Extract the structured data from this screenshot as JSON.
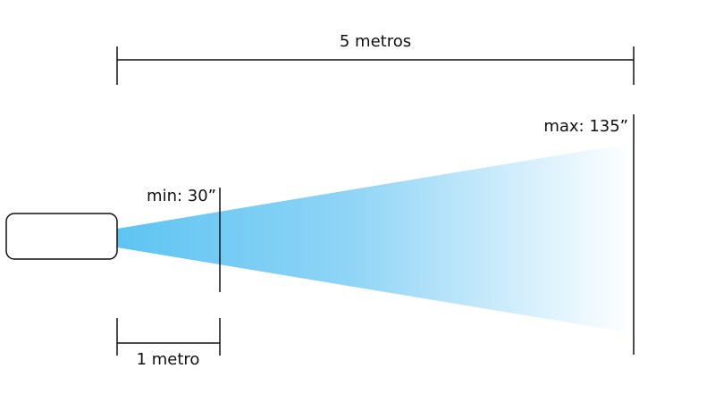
{
  "dimensions": {
    "total": "5 metros",
    "near": "1 metro"
  },
  "screens": {
    "max": "max: 135”",
    "min": "min: 30”"
  }
}
